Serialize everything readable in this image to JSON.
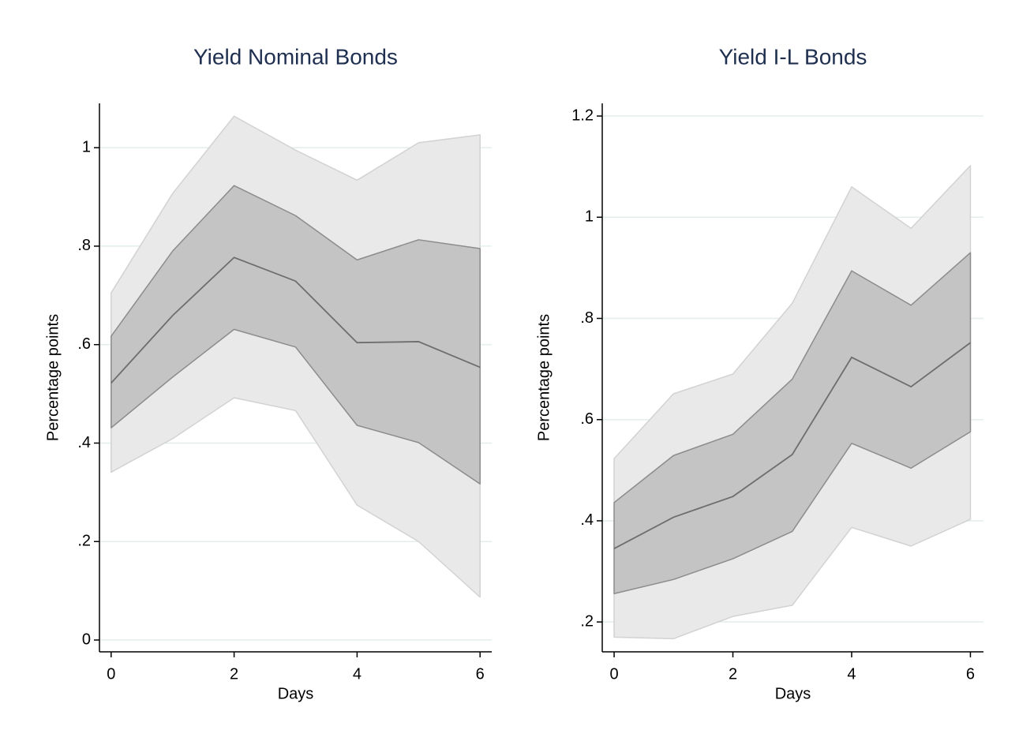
{
  "chart_data": [
    {
      "type": "band-line",
      "title": "Yield Nominal Bonds",
      "x_label": "Days",
      "y_label": "Percentage points",
      "x": [
        0,
        1,
        2,
        3,
        4,
        5,
        6
      ],
      "series": [
        {
          "color": "#6e6e6e",
          "values": [
            0.522,
            0.659,
            0.777,
            0.729,
            0.604,
            0.606,
            0.554
          ]
        }
      ],
      "bands": [
        {
          "color": "#e9e9e9",
          "edge_color": "#d2d2d2",
          "upper": [
            0.705,
            0.907,
            1.064,
            0.995,
            0.934,
            1.01,
            1.026
          ],
          "lower": [
            0.341,
            0.409,
            0.492,
            0.466,
            0.274,
            0.2,
            0.087
          ]
        },
        {
          "color": "#c4c4c4",
          "edge_color": "#8c8c8c",
          "upper": [
            0.617,
            0.79,
            0.923,
            0.862,
            0.772,
            0.813,
            0.795
          ],
          "lower": [
            0.431,
            0.534,
            0.631,
            0.595,
            0.436,
            0.401,
            0.317
          ]
        }
      ],
      "xlim": [
        -0.19,
        6.19
      ],
      "xticks": [
        0,
        2,
        4,
        6
      ],
      "ylim": [
        -0.024,
        1.09
      ],
      "yticks": [
        0,
        {
          "value": 0.2,
          "label": ".2"
        },
        {
          "value": 0.4,
          "label": ".4"
        },
        {
          "value": 0.6,
          "label": ".6"
        },
        {
          "value": 0.8,
          "label": ".8"
        },
        1
      ],
      "grid": true,
      "grid_color": "#e3eeee"
    },
    {
      "type": "band-line",
      "title": "Yield I-L Bonds",
      "x_label": "Days",
      "y_label": "Percentage points",
      "x": [
        0,
        1,
        2,
        3,
        4,
        5,
        6
      ],
      "series": [
        {
          "color": "#6e6e6e",
          "values": [
            0.345,
            0.407,
            0.448,
            0.531,
            0.723,
            0.665,
            0.752
          ]
        }
      ],
      "bands": [
        {
          "color": "#e9e9e9",
          "edge_color": "#d2d2d2",
          "upper": [
            0.523,
            0.651,
            0.69,
            0.83,
            1.06,
            0.978,
            1.102
          ],
          "lower": [
            0.17,
            0.167,
            0.211,
            0.233,
            0.387,
            0.35,
            0.403
          ]
        },
        {
          "color": "#c4c4c4",
          "edge_color": "#8c8c8c",
          "upper": [
            0.436,
            0.529,
            0.571,
            0.68,
            0.894,
            0.826,
            0.93
          ],
          "lower": [
            0.256,
            0.284,
            0.325,
            0.379,
            0.553,
            0.504,
            0.576
          ]
        }
      ],
      "xlim": [
        -0.2,
        6.22
      ],
      "xticks": [
        0,
        2,
        4,
        6
      ],
      "ylim": [
        0.141,
        1.225
      ],
      "yticks": [
        {
          "value": 0.2,
          "label": ".2"
        },
        {
          "value": 0.4,
          "label": ".4"
        },
        {
          "value": 0.6,
          "label": ".6"
        },
        {
          "value": 0.8,
          "label": ".8"
        },
        1,
        {
          "value": 1.2,
          "label": "1.2"
        }
      ],
      "grid": true,
      "grid_color": "#e3eeee"
    }
  ]
}
